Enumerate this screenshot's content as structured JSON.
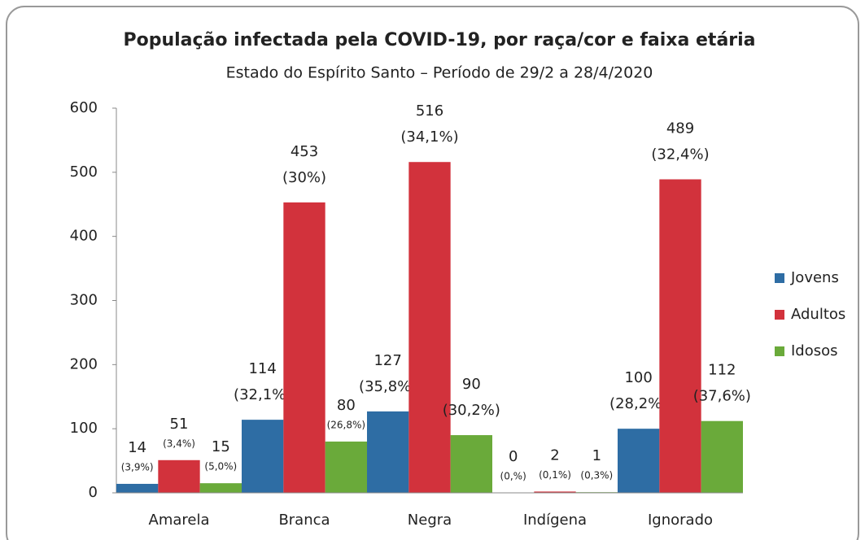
{
  "chart_data": {
    "type": "bar",
    "title": "População infectada pela COVID-19, por raça/cor e faixa etária",
    "subtitle": "Estado do Espírito Santo – Período de 29/2 a 28/4/2020",
    "categories": [
      "Amarela",
      "Branca",
      "Negra",
      "Indígena",
      "Ignorado"
    ],
    "series": [
      {
        "name": "Jovens",
        "color": "#2e6da4",
        "values": [
          14,
          114,
          127,
          0,
          100
        ],
        "percent_labels": [
          "(3,9%)",
          "(32,1%)",
          "(35,8%)",
          "(0,%)",
          "(28,2%)"
        ]
      },
      {
        "name": "Adultos",
        "color": "#d2323c",
        "values": [
          51,
          453,
          516,
          2,
          489
        ],
        "percent_labels": [
          "(3,4%)",
          "(30%)",
          "(34,1%)",
          "(0,1%)",
          "(32,4%)"
        ]
      },
      {
        "name": "Idosos",
        "color": "#6aaa3a",
        "values": [
          15,
          80,
          90,
          1,
          112
        ],
        "percent_labels": [
          "(5,0%)",
          "(26,8%)",
          "(30,2%)",
          "(0,3%)",
          "(37,6%)"
        ]
      }
    ],
    "ylim": [
      0,
      600
    ],
    "yticks": [
      0,
      100,
      200,
      300,
      400,
      500,
      600
    ],
    "legend": "right"
  }
}
